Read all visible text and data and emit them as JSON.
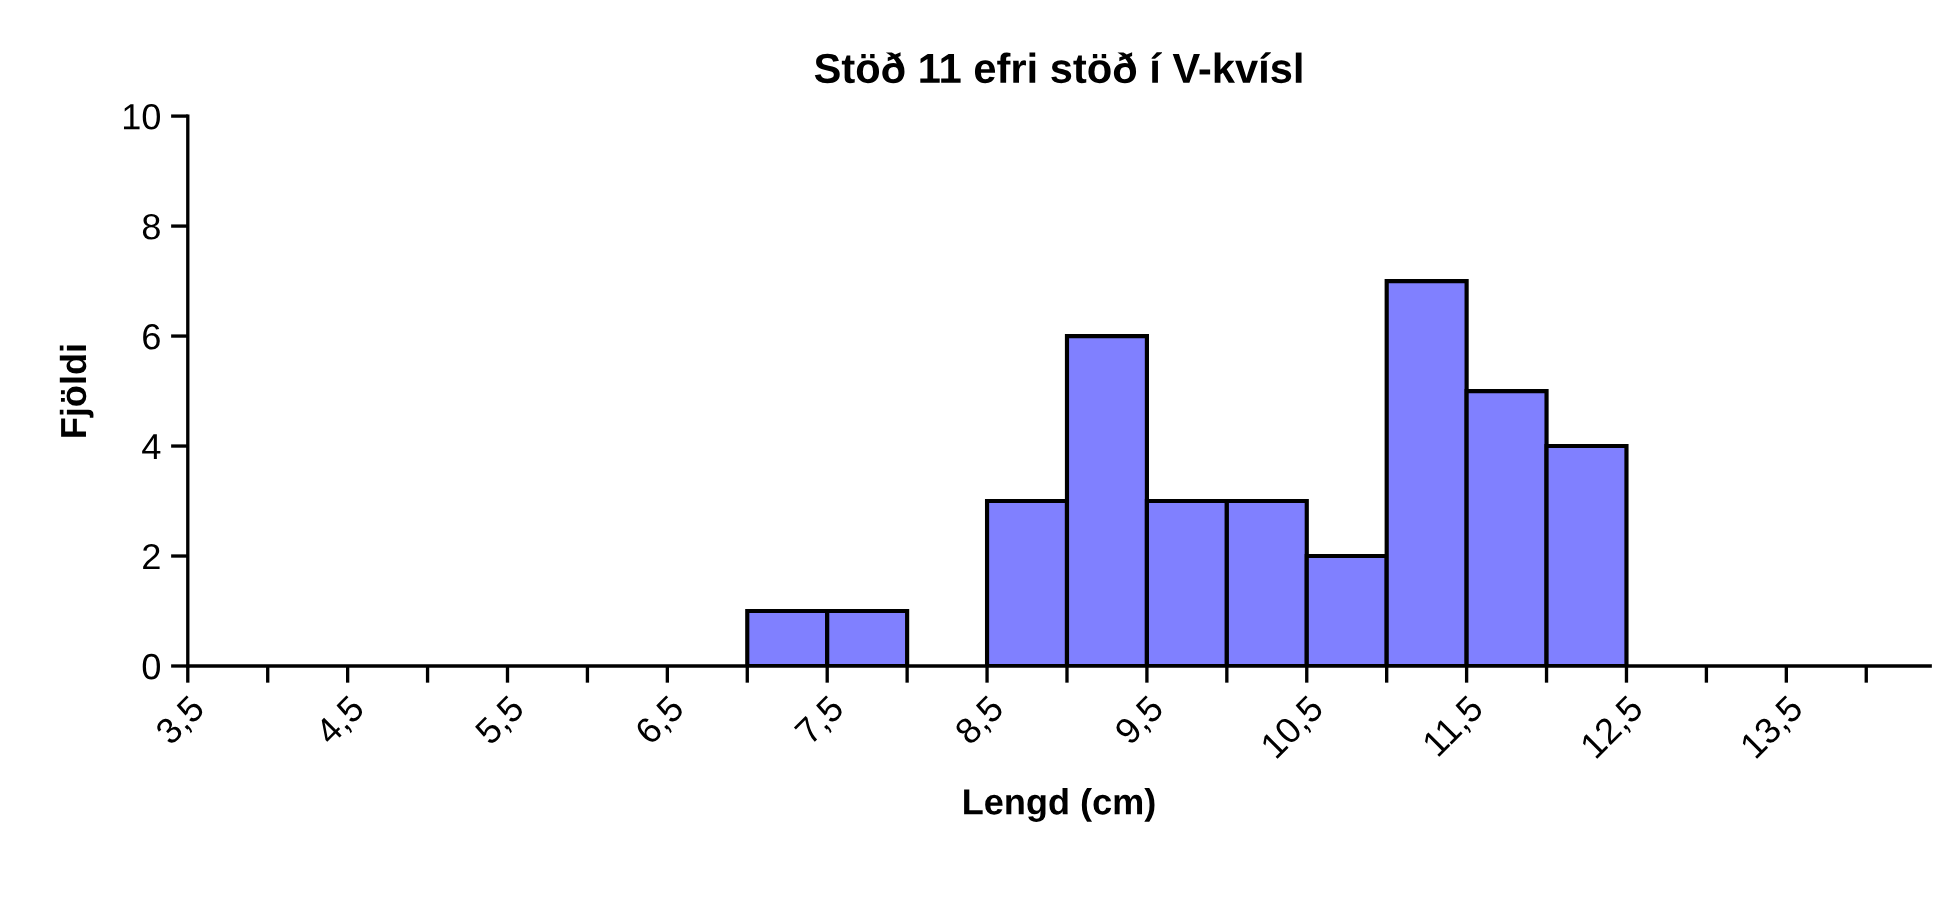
{
  "chart_data": {
    "type": "histogram",
    "title": "Stöð 11 efri stöð í V-kvísl",
    "xlabel": "Lengd (cm)",
    "ylabel": "Fjöldi",
    "bins": [
      7.0,
      7.5,
      8.0,
      8.5,
      9.0,
      9.5,
      10.0,
      10.5,
      11.0,
      11.5,
      12.0,
      12.5
    ],
    "values": [
      1,
      1,
      0,
      3,
      6,
      3,
      3,
      2,
      7,
      5,
      4
    ],
    "color": "#8080ff",
    "xlim": [
      3.5,
      14.4
    ],
    "xticks": [
      {
        "value": 3.5,
        "label": "3,5"
      },
      {
        "value": 4.0,
        "label": null
      },
      {
        "value": 4.5,
        "label": "4,5"
      },
      {
        "value": 5.0,
        "label": null
      },
      {
        "value": 5.5,
        "label": "5,5"
      },
      {
        "value": 6.0,
        "label": null
      },
      {
        "value": 6.5,
        "label": "6,5"
      },
      {
        "value": 7.0,
        "label": null
      },
      {
        "value": 7.5,
        "label": "7,5"
      },
      {
        "value": 8.0,
        "label": null
      },
      {
        "value": 8.5,
        "label": "8,5"
      },
      {
        "value": 9.0,
        "label": null
      },
      {
        "value": 9.5,
        "label": "9,5"
      },
      {
        "value": 10.0,
        "label": null
      },
      {
        "value": 10.5,
        "label": "10,5"
      },
      {
        "value": 11.0,
        "label": null
      },
      {
        "value": 11.5,
        "label": "11,5"
      },
      {
        "value": 12.0,
        "label": null
      },
      {
        "value": 12.5,
        "label": "12,5"
      },
      {
        "value": 13.0,
        "label": null
      },
      {
        "value": 13.5,
        "label": "13,5"
      },
      {
        "value": 14.0,
        "label": null
      }
    ],
    "ylim": [
      0,
      10
    ],
    "yticks": [
      0,
      2,
      4,
      6,
      8,
      10
    ],
    "grid": false,
    "legend": false
  }
}
